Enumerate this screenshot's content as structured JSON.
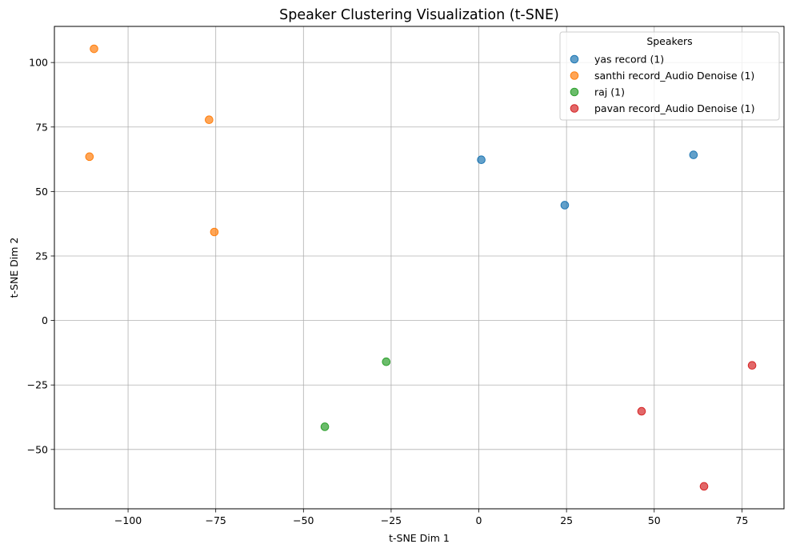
{
  "chart_data": {
    "type": "scatter",
    "title": "Speaker Clustering Visualization (t-SNE)",
    "xlabel": "t-SNE Dim 1",
    "ylabel": "t-SNE Dim 2",
    "xlim": [
      -121,
      87
    ],
    "ylim": [
      -73,
      114
    ],
    "xticks": [
      -100,
      -75,
      -50,
      -25,
      0,
      25,
      50,
      75
    ],
    "yticks": [
      -50,
      -25,
      0,
      25,
      50,
      75,
      100
    ],
    "xtick_labels": [
      "−100",
      "−75",
      "−50",
      "−25",
      "0",
      "25",
      "50",
      "75"
    ],
    "ytick_labels": [
      "−50",
      "−25",
      "0",
      "25",
      "50",
      "75",
      "100"
    ],
    "grid": true,
    "legend": {
      "title": "Speakers",
      "placement": "top-right"
    },
    "series": [
      {
        "name": "yas record (1)",
        "color": "#1f77b4",
        "points": [
          [
            0.7,
            62.3
          ],
          [
            24.5,
            44.7
          ],
          [
            61.2,
            64.2
          ]
        ]
      },
      {
        "name": "santhi record_Audio Denoise (1)",
        "color": "#ff7f0e",
        "points": [
          [
            -109.7,
            105.3
          ],
          [
            -76.9,
            77.8
          ],
          [
            -111.0,
            63.5
          ],
          [
            -75.4,
            34.3
          ]
        ]
      },
      {
        "name": "raj (1)",
        "color": "#2ca02c",
        "points": [
          [
            -26.4,
            -16.0
          ],
          [
            -43.9,
            -41.2
          ]
        ]
      },
      {
        "name": "pavan record_Audio Denoise (1)",
        "color": "#d62728",
        "points": [
          [
            77.9,
            -17.4
          ],
          [
            46.4,
            -35.2
          ],
          [
            64.2,
            -64.3
          ]
        ]
      }
    ]
  }
}
